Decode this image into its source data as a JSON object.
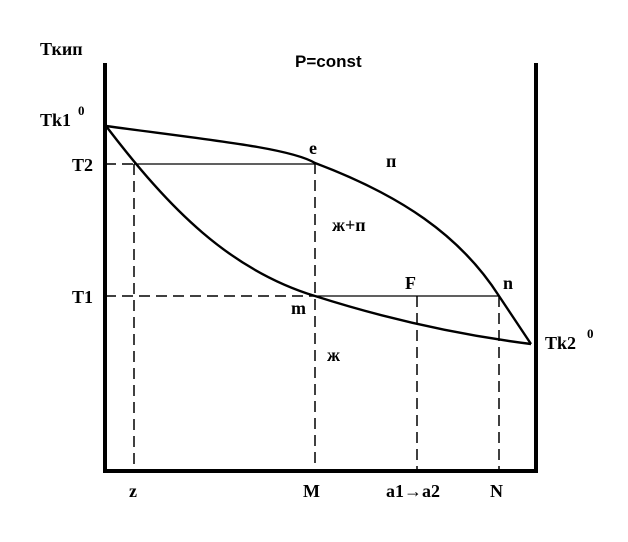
{
  "labels": {
    "y_axis": "Ткип",
    "pressure": "P=const",
    "tk1": "Tk1",
    "tk1_sup": "0",
    "tk2": "Tk2",
    "tk2_sup": "0",
    "t2": "T2",
    "t1": "T1",
    "point_e": "e",
    "point_m": "m",
    "point_n": "n",
    "point_f": "F",
    "region_vapor": "п",
    "region_two_phase": "ж+п",
    "region_liquid": "ж",
    "x_z": "z",
    "x_m": "M",
    "x_a": "a1→a2",
    "x_n": "N"
  }
}
